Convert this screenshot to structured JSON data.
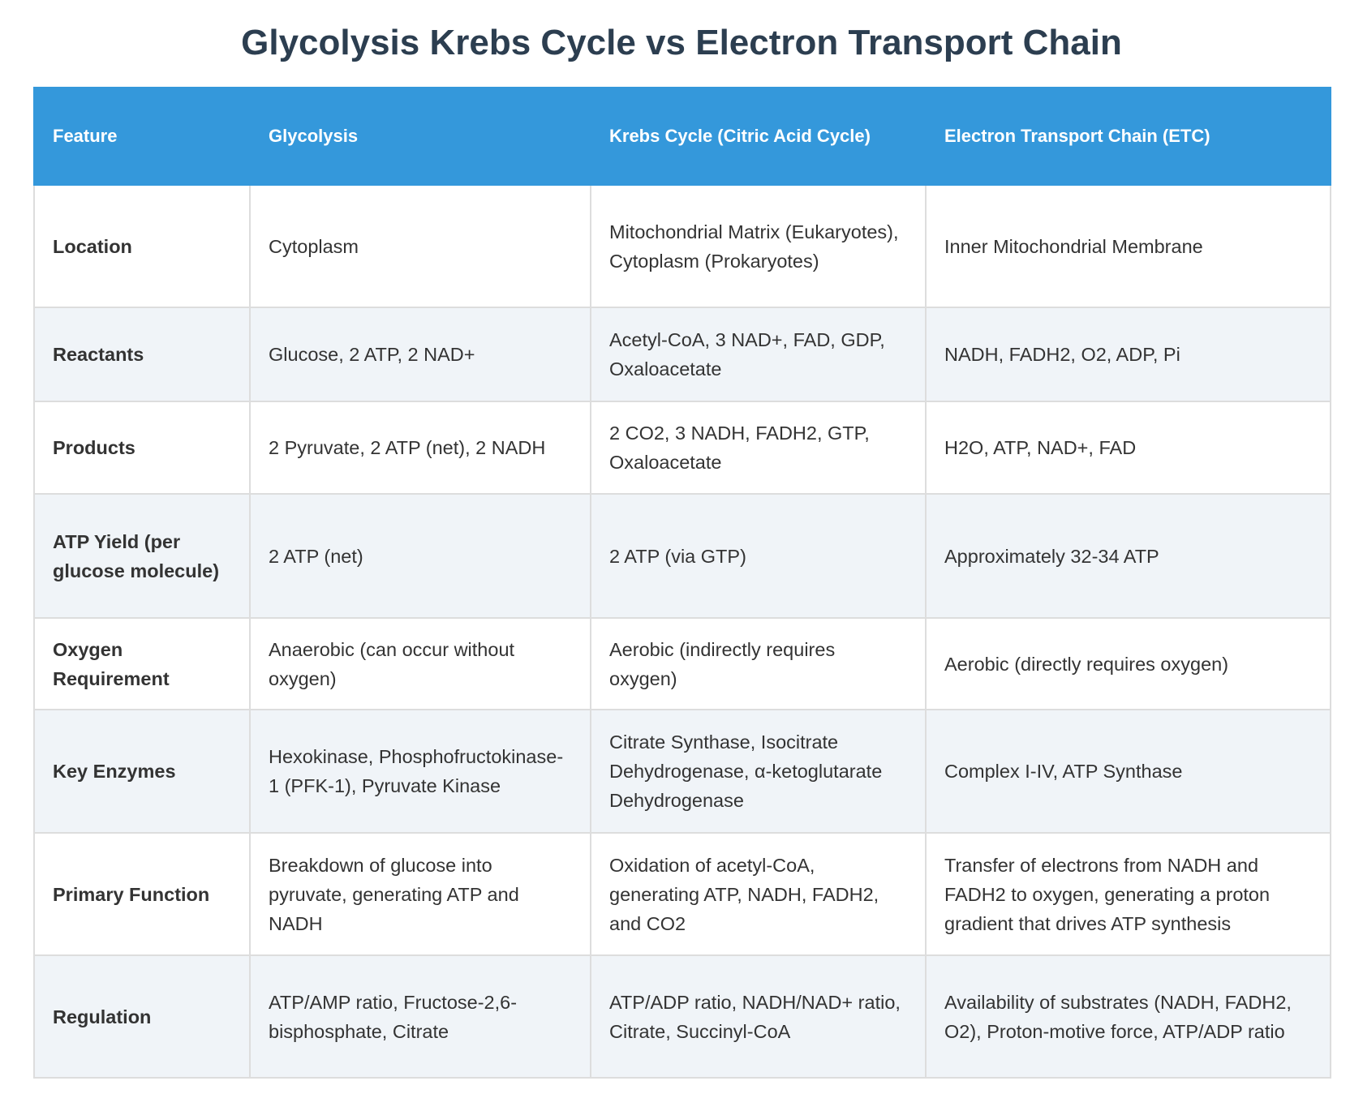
{
  "title": "Glycolysis Krebs Cycle vs Electron Transport Chain",
  "table": {
    "header": [
      "Feature",
      "Glycolysis",
      "Krebs Cycle (Citric Acid Cycle)",
      "Electron Transport Chain (ETC)"
    ],
    "rows": [
      [
        "Location",
        "Cytoplasm",
        "Mitochondrial Matrix (Eukaryotes), Cytoplasm (Prokaryotes)",
        "Inner Mitochondrial Membrane"
      ],
      [
        "Reactants",
        "Glucose, 2 ATP, 2 NAD+",
        "Acetyl-CoA, 3 NAD+, FAD, GDP, Oxaloacetate",
        "NADH, FADH2, O2, ADP, Pi"
      ],
      [
        "Products",
        "2 Pyruvate, 2 ATP (net), 2 NADH",
        "2 CO2, 3 NADH, FADH2, GTP, Oxaloacetate",
        "H2O, ATP, NAD+, FAD"
      ],
      [
        "ATP Yield (per glucose molecule)",
        "2 ATP (net)",
        "2 ATP (via GTP)",
        "Approximately 32-34 ATP"
      ],
      [
        "Oxygen Requirement",
        "Anaerobic (can occur without oxygen)",
        "Aerobic (indirectly requires oxygen)",
        "Aerobic (directly requires oxygen)"
      ],
      [
        "Key Enzymes",
        "Hexokinase, Phosphofructokinase-1 (PFK-1), Pyruvate Kinase",
        "Citrate Synthase, Isocitrate Dehydrogenase, α-ketoglutarate Dehydrogenase",
        "Complex I-IV, ATP Synthase"
      ],
      [
        "Primary Function",
        "Breakdown of glucose into pyruvate, generating ATP and NADH",
        "Oxidation of acetyl-CoA, generating ATP, NADH, FADH2, and CO2",
        "Transfer of electrons from NADH and FADH2 to oxygen, generating a proton gradient that drives ATP synthesis"
      ],
      [
        "Regulation",
        "ATP/AMP ratio, Fructose-2,6-bisphosphate, Citrate",
        "ATP/ADP ratio, NADH/NAD+ ratio, Citrate, Succinyl-CoA",
        "Availability of substrates (NADH, FADH2, O2), Proton-motive force, ATP/ADP ratio"
      ]
    ]
  }
}
